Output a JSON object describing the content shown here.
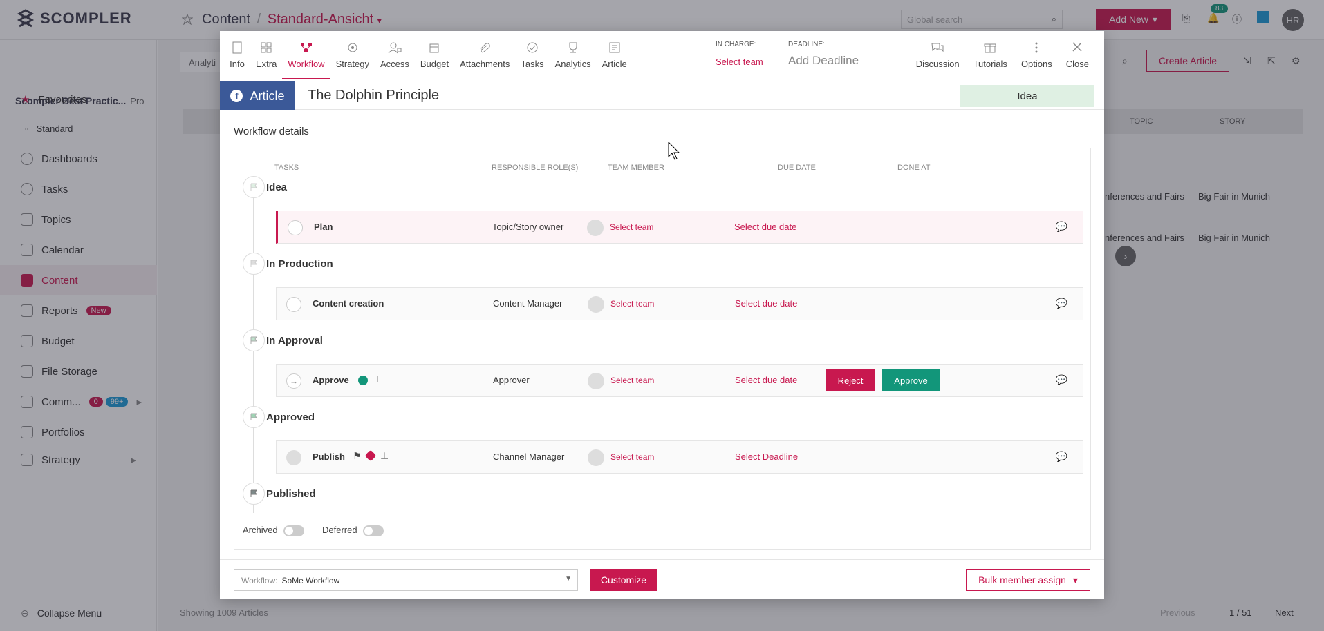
{
  "app": {
    "logo_text": "SCOMPLER",
    "breadcrumb_root": "Content",
    "breadcrumb_current": "Standard-Ansicht",
    "search_placeholder": "Global search",
    "add_new": "Add New",
    "notifications": "83",
    "avatar": "HR"
  },
  "sidebar": {
    "workspace": "Scompler Best Practic...",
    "plan": "Pro",
    "items": [
      {
        "label": "Favourites"
      },
      {
        "label": "Standard"
      },
      {
        "label": "Dashboards"
      },
      {
        "label": "Tasks"
      },
      {
        "label": "Topics"
      },
      {
        "label": "Calendar"
      },
      {
        "label": "Content"
      },
      {
        "label": "Reports",
        "badge": "New"
      },
      {
        "label": "Budget"
      },
      {
        "label": "File Storage"
      },
      {
        "label": "Comm...",
        "badge1": "0",
        "badge2": "99+"
      },
      {
        "label": "Portfolios"
      },
      {
        "label": "Strategy"
      }
    ],
    "collapse": "Collapse Menu"
  },
  "background": {
    "create_article": "Create Article",
    "col_topic": "TOPIC",
    "col_story": "STORY",
    "row_topic": "nferences and Fairs",
    "row_story": "Big Fair in Munich",
    "dash": "—",
    "analytics_trunc": "Analyti",
    "showing": "Showing  1009 Articles",
    "prev": "Previous",
    "pages": "1 / 51",
    "next": "Next"
  },
  "modal": {
    "tabs": [
      {
        "label": "Info"
      },
      {
        "label": "Extra"
      },
      {
        "label": "Workflow"
      },
      {
        "label": "Strategy"
      },
      {
        "label": "Access"
      },
      {
        "label": "Budget"
      },
      {
        "label": "Attachments"
      },
      {
        "label": "Tasks"
      },
      {
        "label": "Analytics"
      },
      {
        "label": "Article"
      }
    ],
    "in_charge_label": "IN CHARGE:",
    "in_charge_value": "Select team",
    "deadline_label": "DEADLINE:",
    "deadline_value": "Add Deadline",
    "actions": [
      {
        "label": "Discussion"
      },
      {
        "label": "Tutorials"
      },
      {
        "label": "Options"
      },
      {
        "label": "Close"
      }
    ],
    "type_chip": "Article",
    "article_title": "The Dolphin Principle",
    "status": "Idea",
    "workflow_heading": "Workflow details",
    "columns": {
      "tasks": "TASKS",
      "roles": "RESPONSIBLE ROLE(S)",
      "member": "TEAM MEMBER",
      "due": "DUE DATE",
      "done": "DONE AT"
    },
    "stages": [
      "Idea",
      "In Production",
      "In Approval",
      "Approved",
      "Published"
    ],
    "tasks": [
      {
        "name": "Plan",
        "role": "Topic/Story owner",
        "team": "Select team",
        "due": "Select due date"
      },
      {
        "name": "Content creation",
        "role": "Content Manager",
        "team": "Select team",
        "due": "Select due date"
      },
      {
        "name": "Approve",
        "role": "Approver",
        "team": "Select team",
        "due": "Select due date",
        "reject": "Reject",
        "approve": "Approve"
      },
      {
        "name": "Publish",
        "role": "Channel Manager",
        "team": "Select team",
        "due": "Select Deadline"
      }
    ],
    "archived": "Archived",
    "deferred": "Deferred",
    "workflow_label": "Workflow:",
    "workflow_value": "SoMe Workflow",
    "customize": "Customize",
    "bulk_assign": "Bulk member assign"
  },
  "colors": {
    "accent": "#c8184f",
    "approve": "#12967a",
    "facebook": "#3b5998",
    "status_bg": "#dff0e3"
  }
}
